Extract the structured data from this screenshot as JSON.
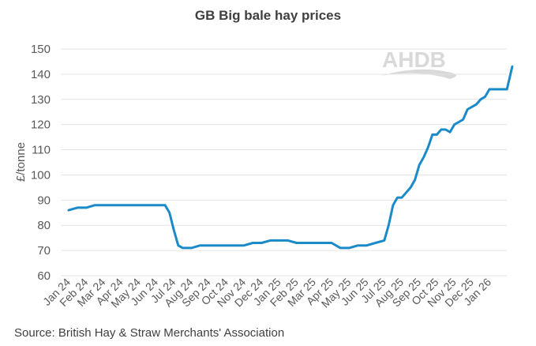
{
  "title": "GB Big bale hay prices",
  "source": "Source: British Hay & Straw Merchants' Association",
  "logo": {
    "text": "AHDB",
    "color": "#d9d9d9"
  },
  "colors": {
    "line": "#1a8bc8",
    "grid": "#e3e3e3",
    "axis_text": "#595959"
  },
  "chart_data": {
    "type": "line",
    "title": "GB Big bale hay prices",
    "xlabel": "",
    "ylabel": "£/tonne",
    "ylim": [
      60,
      150
    ],
    "yticks": [
      60,
      70,
      80,
      90,
      100,
      110,
      120,
      130,
      140,
      150
    ],
    "grid": true,
    "legend": "none",
    "categories": [
      "Jan 24",
      "Feb 24",
      "Mar 24",
      "Apr 24",
      "May 24",
      "Jun 24",
      "Jul 24",
      "Aug 24",
      "Sep 24",
      "Oct 24",
      "Nov 24",
      "Dec 24",
      "Jan 25",
      "Feb 25",
      "Mar 25",
      "Apr 25",
      "May 25",
      "Jun 25",
      "Jul 25",
      "Aug 25",
      "Sep 25",
      "Oct 25",
      "Nov 25",
      "Dec 25",
      "Jan 26"
    ],
    "series": [
      {
        "name": "Big bale hay",
        "x": [
          0,
          0.5,
          1,
          1.5,
          2,
          2.5,
          3,
          3.5,
          4,
          4.5,
          5,
          5.5,
          5.75,
          6,
          6.25,
          6.5,
          7,
          7.5,
          8,
          8.5,
          9,
          9.5,
          10,
          10.5,
          11,
          11.5,
          12,
          12.5,
          13,
          13.5,
          14,
          14.5,
          15,
          15.5,
          16,
          16.5,
          17,
          17.5,
          18,
          18.25,
          18.5,
          18.75,
          19,
          19.25,
          19.5,
          19.75,
          20,
          20.25,
          20.5,
          20.75,
          21,
          21.25,
          21.5,
          21.75,
          22,
          22.25,
          22.5,
          22.75,
          23,
          23.25,
          23.5,
          23.75,
          24,
          24.5,
          25,
          25.3
        ],
        "values": [
          86,
          87,
          87,
          88,
          88,
          88,
          88,
          88,
          88,
          88,
          88,
          88,
          85,
          78,
          72,
          71,
          71,
          72,
          72,
          72,
          72,
          72,
          72,
          73,
          73,
          74,
          74,
          74,
          73,
          73,
          73,
          73,
          73,
          71,
          71,
          72,
          72,
          73,
          74,
          80,
          88,
          91,
          91,
          93,
          95,
          98,
          104,
          107,
          111,
          116,
          116,
          118,
          118,
          117,
          120,
          121,
          122,
          126,
          127,
          128,
          130,
          131,
          134,
          134,
          134,
          143
        ]
      }
    ]
  },
  "axis": {
    "y_ticks": [
      "150",
      "140",
      "130",
      "120",
      "110",
      "100",
      "90",
      "80",
      "70",
      "60"
    ],
    "y_label": "£/tonne"
  }
}
